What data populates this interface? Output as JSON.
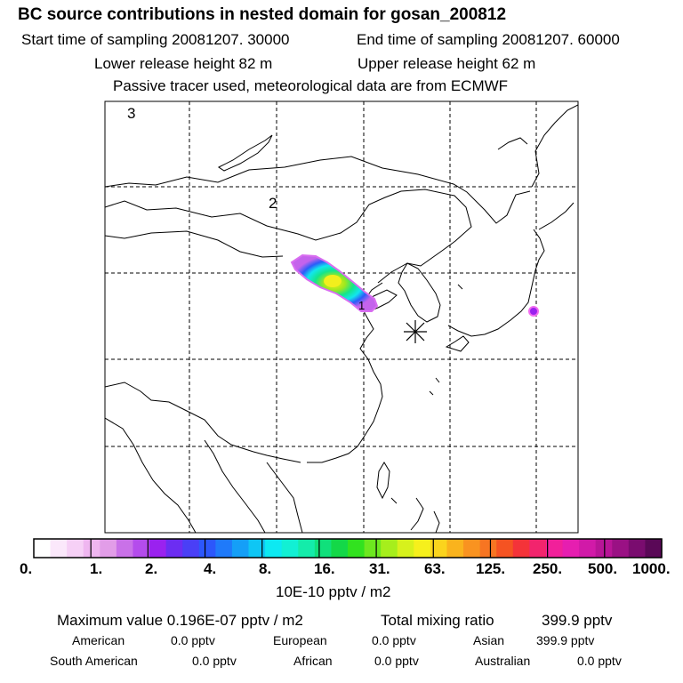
{
  "header": {
    "title": "BC  source contributions in nested domain for gosan_200812",
    "start_label": "Start time of sampling 20081207. 30000",
    "end_label": "End time of sampling 20081207. 60000",
    "lower_label": "Lower release height   82 m",
    "upper_label": "Upper release height   62 m",
    "tracer_label": "Passive tracer used, meteorological data are from ECMWF"
  },
  "map": {
    "contour_labels": [
      "3",
      "2",
      "1"
    ],
    "receptor_marker": "star"
  },
  "colorbar": {
    "tick_labels": [
      "0.",
      "1.",
      "2.",
      "4.",
      "8.",
      "16.",
      "31.",
      "63.",
      "125.",
      "250.",
      "500.",
      "1000."
    ],
    "unit_label": "10E-10 pptv / m2",
    "colors": [
      "#ffffff",
      "#fbe8fb",
      "#f6d0f6",
      "#efb6f0",
      "#e29de8",
      "#c971e8",
      "#b44cec",
      "#9a22ef",
      "#6c2df2",
      "#4a3ff6",
      "#2c57fb",
      "#1f7afa",
      "#159ff7",
      "#0fc6f4",
      "#0de9f2",
      "#12f0d4",
      "#14ecaa",
      "#10e07b",
      "#14d848",
      "#32e21f",
      "#6de81f",
      "#a6ee1c",
      "#d7f11c",
      "#f6f01c",
      "#fbd41d",
      "#fab31d",
      "#f99320",
      "#f77522",
      "#f55322",
      "#f43339",
      "#f2246d",
      "#f1209a",
      "#e61eb0",
      "#d11aa8",
      "#b81597",
      "#9a1184",
      "#7a0c6f",
      "#5a0857"
    ]
  },
  "stats": {
    "max_label": "Maximum value  0.196E-07 pptv / m2",
    "total_label": "Total mixing ratio",
    "total_value": "399.9 pptv",
    "regions": [
      {
        "name": "American",
        "value": "0.0 pptv"
      },
      {
        "name": "European",
        "value": "0.0 pptv"
      },
      {
        "name": "Asian",
        "value": "399.9 pptv"
      },
      {
        "name": "South American",
        "value": "0.0 pptv"
      },
      {
        "name": "African",
        "value": "0.0 pptv"
      },
      {
        "name": "Australian",
        "value": "0.0 pptv"
      }
    ]
  }
}
